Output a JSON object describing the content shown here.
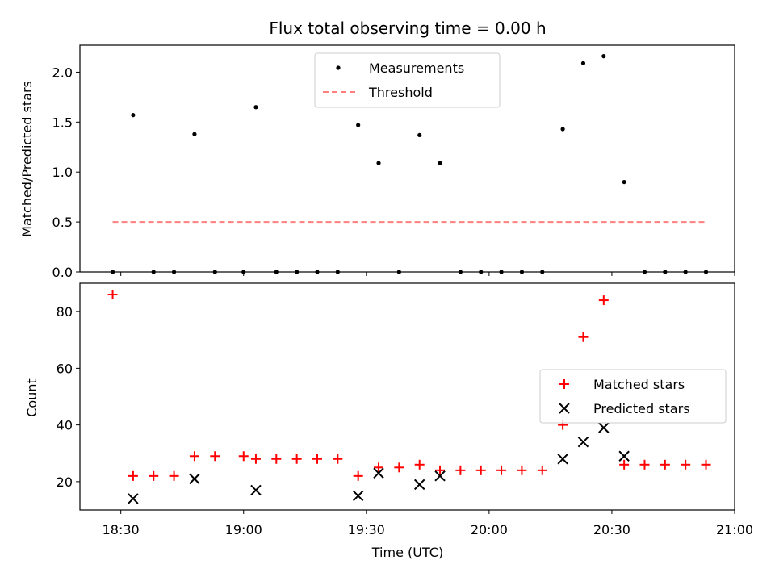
{
  "chart_data": [
    {
      "type": "scatter",
      "title": "Flux total observing time = 0.00 h",
      "xlabel": "",
      "ylabel": "Matched/Predicted stars",
      "ylim": [
        0,
        2.27
      ],
      "yticks": [
        "0.0",
        "0.5",
        "1.0",
        "1.5",
        "2.0"
      ],
      "legend": "top-center",
      "legend_entries": [
        "Measurements",
        "Threshold"
      ],
      "series": [
        {
          "name": "Measurements",
          "marker": "dot",
          "color": "#000000",
          "x": [
            "18:28",
            "18:33",
            "18:38",
            "18:43",
            "18:48",
            "18:53",
            "19:00",
            "19:03",
            "19:08",
            "19:13",
            "19:18",
            "19:23",
            "19:28",
            "19:33",
            "19:38",
            "19:43",
            "19:48",
            "19:53",
            "19:58",
            "20:03",
            "20:08",
            "20:13",
            "20:18",
            "20:23",
            "20:28",
            "20:33",
            "20:38",
            "20:43",
            "20:48",
            "20:53"
          ],
          "y": [
            0,
            1.57,
            0,
            0,
            1.38,
            0,
            0,
            1.65,
            0,
            0,
            0,
            0,
            1.47,
            1.09,
            0,
            1.37,
            1.09,
            0,
            0,
            0,
            0,
            0,
            1.43,
            2.09,
            2.16,
            0.9,
            0,
            0,
            0,
            0
          ]
        },
        {
          "name": "Threshold",
          "marker": "dashed-line",
          "color": "#ff7f7f",
          "x": [
            "18:28",
            "20:53"
          ],
          "y": [
            0.5,
            0.5
          ]
        }
      ]
    },
    {
      "type": "scatter",
      "title": "",
      "xlabel": "Time (UTC)",
      "ylabel": "Count",
      "ylim": [
        10,
        90
      ],
      "xlim": [
        "18:20",
        "21:00"
      ],
      "xticks": [
        "18:30",
        "19:00",
        "19:30",
        "20:00",
        "20:30",
        "21:00"
      ],
      "yticks": [
        "20",
        "40",
        "60",
        "80"
      ],
      "legend": "center-right",
      "legend_entries": [
        "Matched stars",
        "Predicted stars"
      ],
      "series": [
        {
          "name": "Matched stars",
          "marker": "plus",
          "color": "#ff0000",
          "x": [
            "18:28",
            "18:33",
            "18:38",
            "18:43",
            "18:48",
            "18:53",
            "19:00",
            "19:03",
            "19:08",
            "19:13",
            "19:18",
            "19:23",
            "19:28",
            "19:33",
            "19:38",
            "19:43",
            "19:48",
            "19:53",
            "19:58",
            "20:03",
            "20:08",
            "20:13",
            "20:18",
            "20:23",
            "20:28",
            "20:33",
            "20:38",
            "20:43",
            "20:48",
            "20:53"
          ],
          "y": [
            86,
            22,
            22,
            22,
            29,
            29,
            29,
            28,
            28,
            28,
            28,
            28,
            22,
            25,
            25,
            26,
            24,
            24,
            24,
            24,
            24,
            24,
            40,
            71,
            84,
            26,
            26,
            26,
            26,
            26
          ]
        },
        {
          "name": "Predicted stars",
          "marker": "x",
          "color": "#000000",
          "x": [
            "18:33",
            "18:48",
            "19:03",
            "19:28",
            "19:33",
            "19:43",
            "19:48",
            "20:18",
            "20:23",
            "20:28",
            "20:33"
          ],
          "y": [
            14,
            21,
            17,
            15,
            23,
            19,
            22,
            28,
            34,
            39,
            29
          ]
        }
      ]
    }
  ]
}
